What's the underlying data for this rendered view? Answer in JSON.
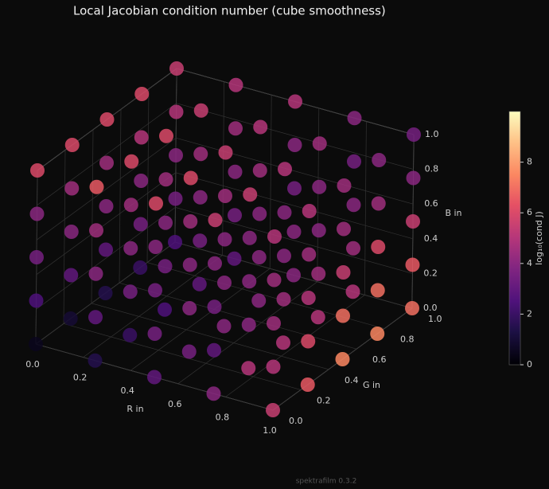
{
  "chart_data": {
    "type": "scatter3d",
    "title": "Local Jacobian condition number (cube smoothness)",
    "xlabel": "R in",
    "ylabel": "G in",
    "zlabel": "B in",
    "x": [
      0,
      0.25,
      0.5,
      0.75,
      1
    ],
    "y": [
      0,
      0.25,
      0.5,
      0.75,
      1
    ],
    "z": [
      0,
      0.25,
      0.5,
      0.75,
      1
    ],
    "values": [
      [
        [
          0.5,
          2.5,
          3.5,
          4,
          6
        ],
        [
          1,
          3,
          4,
          4.5,
          6
        ],
        [
          1.5,
          3,
          4,
          4.5,
          6
        ],
        [
          2,
          3.5,
          4,
          5,
          6
        ],
        [
          2.5,
          3.5,
          4,
          5,
          5.5
        ]
      ],
      [
        [
          1.5,
          3,
          4,
          4.5,
          6.5
        ],
        [
          2,
          3.5,
          4,
          4.5,
          6
        ],
        [
          2.5,
          3.5,
          4,
          4.5,
          6
        ],
        [
          3,
          3.5,
          4,
          4.5,
          5.5
        ],
        [
          3,
          3.5,
          4,
          4.5,
          5
        ]
      ],
      [
        [
          3,
          3.5,
          3.5,
          4,
          6
        ],
        [
          3.5,
          4,
          4,
          4.5,
          6
        ],
        [
          4,
          4,
          4,
          4.5,
          5.5
        ],
        [
          4,
          4,
          4,
          4.5,
          5
        ],
        [
          4,
          4,
          3.5,
          4,
          5
        ]
      ],
      [
        [
          4,
          3,
          3.5,
          4,
          5.5
        ],
        [
          5,
          4,
          4,
          4,
          5.5
        ],
        [
          5,
          4.5,
          4,
          4,
          5
        ],
        [
          5,
          4.5,
          4,
          4,
          4.5
        ],
        [
          5,
          4.5,
          4,
          3.5,
          4
        ]
      ],
      [
        [
          5.5,
          5,
          4.5,
          4.5,
          5
        ],
        [
          6.5,
          6,
          5,
          4.5,
          5
        ],
        [
          7.5,
          7,
          5.5,
          4.5,
          4.5
        ],
        [
          7.5,
          7,
          6,
          4.5,
          4
        ],
        [
          7,
          6.5,
          5.5,
          4,
          3.5
        ]
      ]
    ],
    "xlim": [
      0,
      1
    ],
    "ylim": [
      0,
      1
    ],
    "zlim": [
      0,
      1
    ],
    "xticks": [
      {
        "value": 0,
        "label": "0.0"
      },
      {
        "value": 0.2,
        "label": "0.2"
      },
      {
        "value": 0.4,
        "label": "0.4"
      },
      {
        "value": 0.6,
        "label": "0.6"
      },
      {
        "value": 0.8,
        "label": "0.8"
      },
      {
        "value": 1,
        "label": "1.0"
      }
    ],
    "yticks": [
      {
        "value": 0,
        "label": "0.0"
      },
      {
        "value": 0.2,
        "label": "0.2"
      },
      {
        "value": 0.4,
        "label": "0.4"
      },
      {
        "value": 0.6,
        "label": "0.6"
      },
      {
        "value": 0.8,
        "label": "0.8"
      },
      {
        "value": 1,
        "label": "1.0"
      }
    ],
    "zticks": [
      {
        "value": 0,
        "label": "0.0"
      },
      {
        "value": 0.2,
        "label": "0.2"
      },
      {
        "value": 0.4,
        "label": "0.4"
      },
      {
        "value": 0.6,
        "label": "0.6"
      },
      {
        "value": 0.8,
        "label": "0.8"
      },
      {
        "value": 1,
        "label": "1.0"
      }
    ],
    "colormap": "magma",
    "clim": [
      0,
      10
    ],
    "cticks": [
      0,
      2,
      4,
      6,
      8
    ],
    "colorbar_label": "log₁₀(cond J)",
    "footer": "spektrafilm 0.3.2"
  }
}
